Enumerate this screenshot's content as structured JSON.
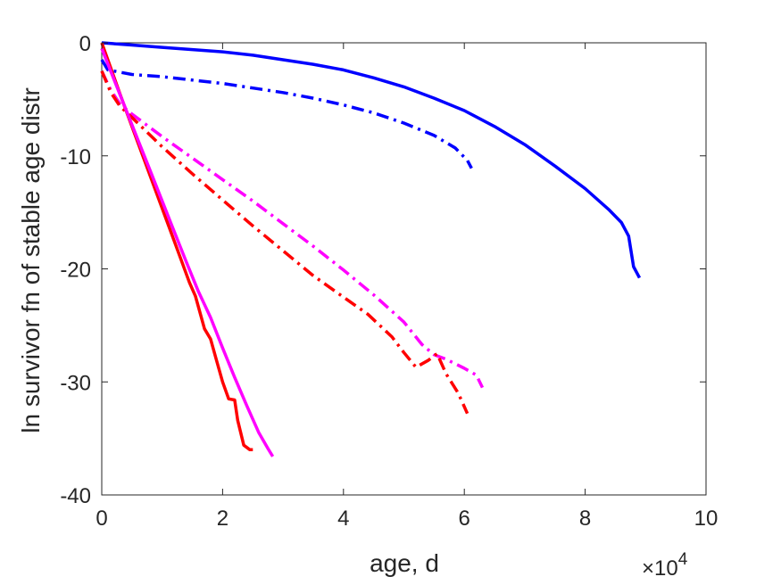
{
  "chart_data": {
    "type": "line",
    "title": "",
    "xlabel": "age, d",
    "ylabel": "ln survivor fn of stable age distr",
    "xlim": [
      0,
      100000
    ],
    "ylim": [
      -40,
      0
    ],
    "x_multiplier_label": "×10",
    "x_multiplier_exp": "4",
    "x_ticks": [
      0,
      20000,
      40000,
      60000,
      80000,
      100000
    ],
    "x_tick_labels": [
      "0",
      "2",
      "4",
      "6",
      "8",
      "10"
    ],
    "y_ticks": [
      -40,
      -30,
      -20,
      -10,
      0
    ],
    "y_tick_labels": [
      "-40",
      "-30",
      "-20",
      "-10",
      "0"
    ],
    "grid": false,
    "legend": "none",
    "series": [
      {
        "color": "#0000ff",
        "style": "solid",
        "points": [
          [
            0,
            0
          ],
          [
            5000,
            -0.2
          ],
          [
            10000,
            -0.4
          ],
          [
            15000,
            -0.6
          ],
          [
            20000,
            -0.8
          ],
          [
            25000,
            -1.1
          ],
          [
            30000,
            -1.5
          ],
          [
            35000,
            -1.9
          ],
          [
            40000,
            -2.4
          ],
          [
            45000,
            -3.1
          ],
          [
            50000,
            -3.9
          ],
          [
            55000,
            -4.9
          ],
          [
            60000,
            -6.0
          ],
          [
            65000,
            -7.4
          ],
          [
            70000,
            -9.0
          ],
          [
            75000,
            -10.9
          ],
          [
            80000,
            -12.9
          ],
          [
            84000,
            -14.8
          ],
          [
            86000,
            -15.9
          ],
          [
            87200,
            -17.1
          ],
          [
            88000,
            -19.8
          ],
          [
            89000,
            -20.8
          ]
        ]
      },
      {
        "color": "#0000ff",
        "style": "dashdot",
        "points": [
          [
            0,
            -1.5
          ],
          [
            1000,
            -2.4
          ],
          [
            5000,
            -2.8
          ],
          [
            10000,
            -3.0
          ],
          [
            15000,
            -3.3
          ],
          [
            20000,
            -3.6
          ],
          [
            25000,
            -4.0
          ],
          [
            30000,
            -4.4
          ],
          [
            35000,
            -4.9
          ],
          [
            40000,
            -5.5
          ],
          [
            45000,
            -6.2
          ],
          [
            50000,
            -7.1
          ],
          [
            55000,
            -8.2
          ],
          [
            58500,
            -9.3
          ],
          [
            60500,
            -10.4
          ],
          [
            61200,
            -11.1
          ]
        ]
      },
      {
        "color": "#ff00ff",
        "style": "dashdot",
        "points": [
          [
            0,
            -2.5
          ],
          [
            1500,
            -4.2
          ],
          [
            3000,
            -5.4
          ],
          [
            5000,
            -6.3
          ],
          [
            10000,
            -8.3
          ],
          [
            15000,
            -10.2
          ],
          [
            20000,
            -12.1
          ],
          [
            25000,
            -14.0
          ],
          [
            30000,
            -16.0
          ],
          [
            35000,
            -18.0
          ],
          [
            40000,
            -20.1
          ],
          [
            45000,
            -22.3
          ],
          [
            50000,
            -24.7
          ],
          [
            53000,
            -26.7
          ],
          [
            55000,
            -27.6
          ],
          [
            57000,
            -28.0
          ],
          [
            60000,
            -28.8
          ],
          [
            62000,
            -29.4
          ],
          [
            63000,
            -30.5
          ]
        ]
      },
      {
        "color": "#ff0000",
        "style": "dashdot",
        "points": [
          [
            0,
            -2.5
          ],
          [
            1500,
            -4.4
          ],
          [
            3000,
            -5.6
          ],
          [
            5000,
            -6.6
          ],
          [
            10000,
            -9.2
          ],
          [
            15000,
            -11.6
          ],
          [
            20000,
            -13.9
          ],
          [
            25000,
            -16.2
          ],
          [
            30000,
            -18.4
          ],
          [
            35000,
            -20.6
          ],
          [
            40000,
            -22.5
          ],
          [
            44000,
            -24.0
          ],
          [
            48000,
            -26.0
          ],
          [
            50000,
            -27.4
          ],
          [
            52000,
            -28.7
          ],
          [
            54000,
            -28.1
          ],
          [
            55500,
            -27.5
          ],
          [
            57000,
            -29.3
          ],
          [
            59000,
            -31.0
          ],
          [
            60500,
            -32.8
          ]
        ]
      },
      {
        "color": "#ff0000",
        "style": "solid",
        "points": [
          [
            0,
            0
          ],
          [
            1000,
            -1.5
          ],
          [
            3000,
            -4.5
          ],
          [
            5000,
            -7.4
          ],
          [
            7000,
            -10.3
          ],
          [
            9000,
            -13.2
          ],
          [
            11000,
            -16.1
          ],
          [
            13000,
            -19.0
          ],
          [
            14500,
            -21.2
          ],
          [
            15500,
            -22.4
          ],
          [
            17000,
            -25.3
          ],
          [
            18000,
            -26.2
          ],
          [
            19000,
            -28.1
          ],
          [
            20000,
            -30.0
          ],
          [
            21000,
            -31.5
          ],
          [
            22000,
            -31.6
          ],
          [
            22500,
            -33.4
          ],
          [
            23500,
            -35.6
          ],
          [
            24500,
            -36.0
          ],
          [
            25000,
            -36.0
          ]
        ]
      },
      {
        "color": "#ff00ff",
        "style": "solid",
        "points": [
          [
            0,
            -0.5
          ],
          [
            2000,
            -3.2
          ],
          [
            4000,
            -5.9
          ],
          [
            6000,
            -8.6
          ],
          [
            8000,
            -11.3
          ],
          [
            10000,
            -14.0
          ],
          [
            12000,
            -16.7
          ],
          [
            14000,
            -19.4
          ],
          [
            16000,
            -22.0
          ],
          [
            18000,
            -24.3
          ],
          [
            20000,
            -27.0
          ],
          [
            22000,
            -29.6
          ],
          [
            24000,
            -32.1
          ],
          [
            26000,
            -34.5
          ],
          [
            27500,
            -35.9
          ],
          [
            28300,
            -36.6
          ]
        ]
      }
    ]
  }
}
